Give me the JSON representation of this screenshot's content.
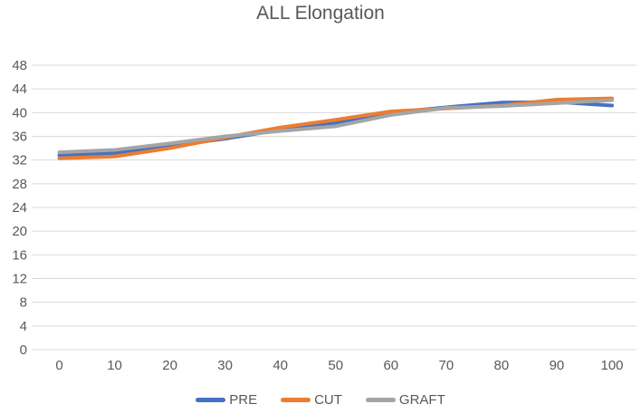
{
  "chart": {
    "title": "ALL Elongation"
  },
  "chart_data": {
    "type": "line",
    "title": "ALL Elongation",
    "xlabel": "",
    "ylabel": "",
    "x": [
      0,
      10,
      20,
      30,
      40,
      50,
      60,
      70,
      80,
      90,
      100
    ],
    "xticks": [
      0,
      10,
      20,
      30,
      40,
      50,
      60,
      70,
      80,
      90,
      100
    ],
    "yticks": [
      0,
      4,
      8,
      12,
      16,
      20,
      24,
      28,
      32,
      36,
      40,
      44,
      48
    ],
    "ylim": [
      0,
      48
    ],
    "grid": "horizontal",
    "gridline_color": "#D9D9D9",
    "axis_label_color": "#595959",
    "title_color": "#595959",
    "legend_position": "bottom",
    "series": [
      {
        "name": "PRE",
        "color": "#4472C4",
        "values": [
          32.8,
          33.2,
          34.4,
          35.6,
          37.1,
          38.2,
          40.0,
          40.9,
          41.7,
          41.8,
          41.2
        ]
      },
      {
        "name": "CUT",
        "color": "#ED7D31",
        "values": [
          32.3,
          32.6,
          34.0,
          35.8,
          37.5,
          38.8,
          40.2,
          40.7,
          41.2,
          42.2,
          42.4
        ]
      },
      {
        "name": "GRAFT",
        "color": "#A5A5A5",
        "values": [
          33.3,
          33.7,
          34.8,
          36.0,
          36.9,
          37.7,
          39.6,
          40.8,
          41.1,
          41.6,
          42.1
        ]
      }
    ]
  }
}
